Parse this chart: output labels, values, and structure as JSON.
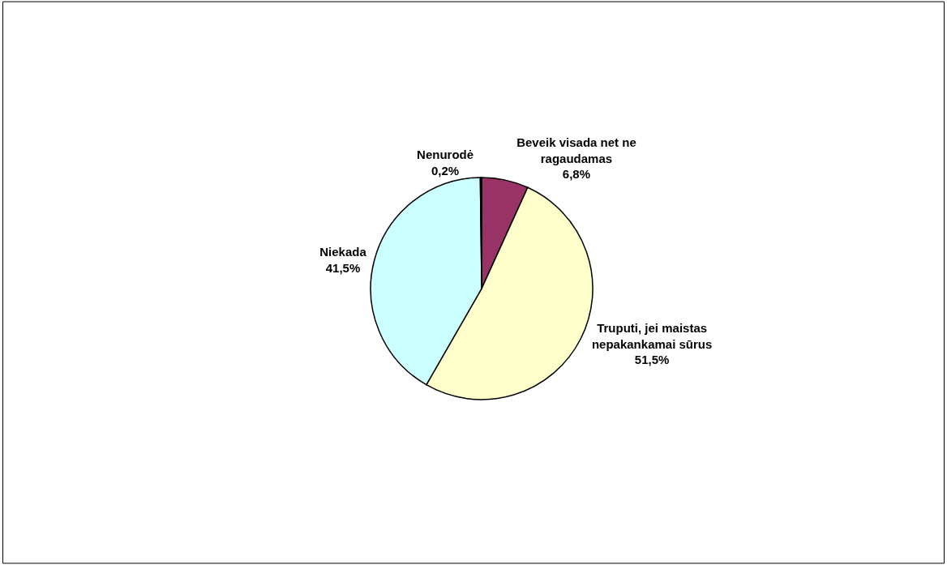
{
  "chart_data": {
    "type": "pie",
    "categories": [
      "Beveik visada net ne ragaudamas",
      "Truputi, jei maistas nepakankamai sūrus",
      "Niekada",
      "Nenurodė"
    ],
    "values": [
      6.8,
      51.5,
      41.5,
      0.2
    ],
    "colors": [
      "#993366",
      "#ffffcc",
      "#ccffff",
      "#000080"
    ],
    "value_labels": [
      "6,8%",
      "51,5%",
      "41,5%",
      "0,2%"
    ],
    "legend": false
  }
}
